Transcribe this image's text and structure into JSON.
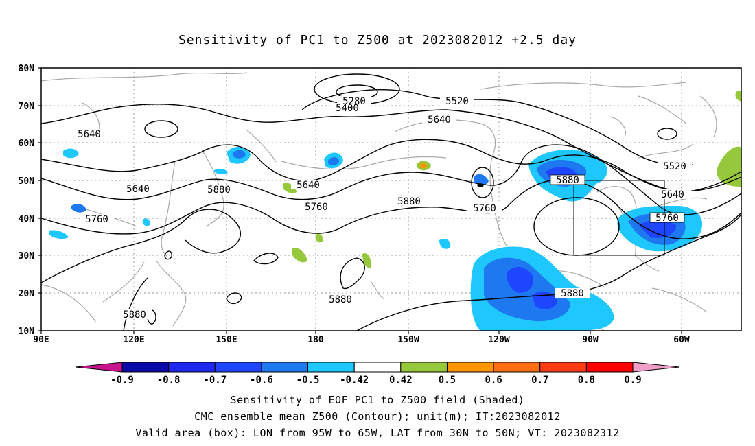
{
  "title": "Sensitivity of PC1 to Z500 at 2023082012 +2.5 day",
  "lat_labels": [
    "80N",
    "70N",
    "60N",
    "50N",
    "40N",
    "30N",
    "20N",
    "10N"
  ],
  "lon_labels": [
    "90E",
    "120E",
    "150E",
    "180",
    "150W",
    "120W",
    "90W",
    "60W"
  ],
  "contour_labels": [
    "5280",
    "5400",
    "5520",
    "5640",
    "5640",
    "5640",
    "5640",
    "5760",
    "5760",
    "5760",
    "5880",
    "5880",
    "5880",
    "5880",
    "5880",
    "5880",
    "5520",
    "5640",
    "5760"
  ],
  "colorbar": {
    "labels": [
      "-0.9",
      "-0.8",
      "-0.7",
      "-0.6",
      "-0.5",
      "-0.42",
      "0.42",
      "0.5",
      "0.6",
      "0.7",
      "0.8",
      "0.9"
    ],
    "colors": [
      "#0a0aa8",
      "#1e28f0",
      "#1e46ff",
      "#1e78f0",
      "#1ec8ff",
      "#ffffff",
      "#96c83c",
      "#ff9600",
      "#ff6e14",
      "#ff3c14",
      "#ff0000"
    ],
    "low_end_color": "#c8148c",
    "high_end_color": "#f0a0c8"
  },
  "footer": {
    "line1": "Sensitivity of EOF PC1 to Z500 field (Shaded)",
    "line2": "CMC ensemble mean Z500 (Contour); unit(m); IT:2023082012",
    "line3": "Valid area (box): LON from 95W to 65W, LAT from 30N to 50N; VT: 2023082312"
  }
}
